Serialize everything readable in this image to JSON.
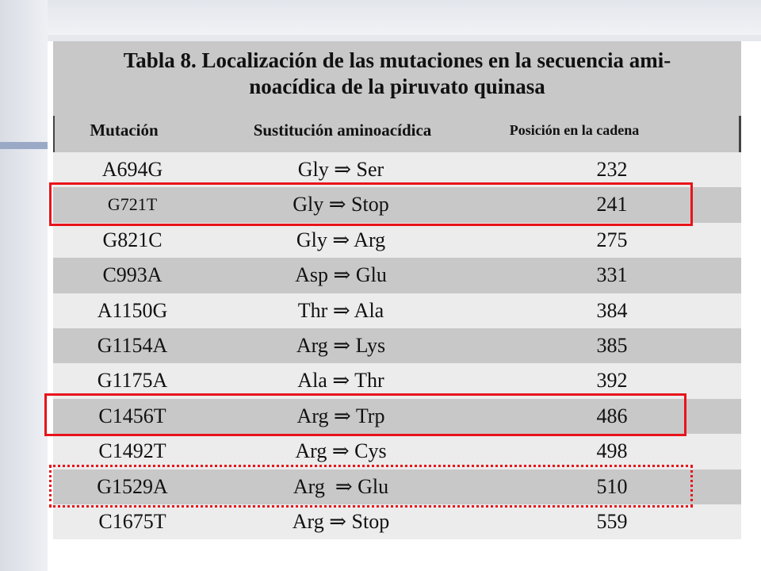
{
  "table": {
    "title_line1": "Tabla 8. Localización de las mutaciones en la secuencia ami-",
    "title_line2": "noacídica de la piruvato quinasa",
    "headers": {
      "mutation": "Mutación",
      "substitution": "Sustitución aminoacídica",
      "position": "Posición en la cadena"
    },
    "rows": [
      {
        "mutation": "A694G",
        "substitution": "Gly ⇒ Ser",
        "position": "232"
      },
      {
        "mutation": "G721T",
        "substitution": "Gly ⇒ Stop",
        "position": "241"
      },
      {
        "mutation": "G821C",
        "substitution": "Gly ⇒ Arg",
        "position": "275"
      },
      {
        "mutation": "C993A",
        "substitution": "Asp ⇒ Glu",
        "position": "331"
      },
      {
        "mutation": "A1150G",
        "substitution": "Thr ⇒ Ala",
        "position": "384"
      },
      {
        "mutation": "G1154A",
        "substitution": "Arg ⇒ Lys",
        "position": "385"
      },
      {
        "mutation": "G1175A",
        "substitution": "Ala ⇒ Thr",
        "position": "392"
      },
      {
        "mutation": "C1456T",
        "substitution": "Arg ⇒ Trp",
        "position": "486"
      },
      {
        "mutation": "C1492T",
        "substitution": "Arg ⇒ Cys",
        "position": "498"
      },
      {
        "mutation": "G1529A",
        "substitution": "Arg  ⇒ Glu",
        "position": "510"
      },
      {
        "mutation": "C1675T",
        "substitution": "Arg ⇒ Stop",
        "position": "559"
      }
    ]
  },
  "colors": {
    "highlight": "#e8141b",
    "header_bg": "#c8c8c8",
    "accent_line": "#9aaac6"
  }
}
